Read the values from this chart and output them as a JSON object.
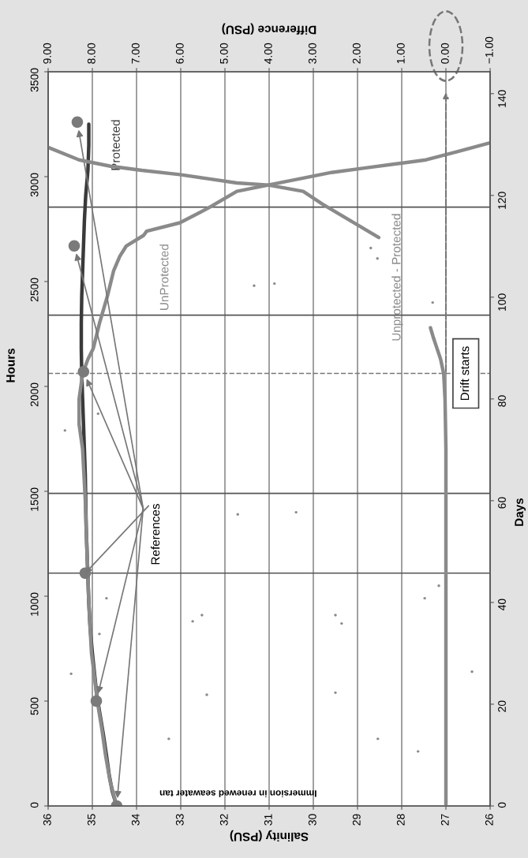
{
  "chart_data": {
    "type": "line",
    "xlabel": "Salinity (PSU)",
    "x2label": "Difference (PSU)",
    "ylabel": "Hours",
    "y2label": "Days",
    "xlim": [
      36,
      26
    ],
    "xticks": [
      36,
      35,
      34,
      33,
      32,
      31,
      30,
      29,
      28,
      27,
      26
    ],
    "x2lim": [
      9,
      -1
    ],
    "x2ticks": [
      {
        "value": 9,
        "label": "9.00"
      },
      {
        "value": 8,
        "label": "8.00"
      },
      {
        "value": 7,
        "label": "7.00"
      },
      {
        "value": 6,
        "label": "6.00"
      },
      {
        "value": 5,
        "label": "5.00"
      },
      {
        "value": 4,
        "label": "4.00"
      },
      {
        "value": 3,
        "label": "3.00"
      },
      {
        "value": 2,
        "label": "2.00"
      },
      {
        "value": 1,
        "label": "1.00"
      },
      {
        "value": 0,
        "label": "0.00"
      },
      {
        "value": -1,
        "label": "−1.00"
      }
    ],
    "ylim": [
      0,
      3500
    ],
    "yticks": [
      0,
      500,
      1000,
      1500,
      2000,
      2500,
      3000,
      3500
    ],
    "y2lim": [
      0,
      144.3
    ],
    "y2ticks": [
      0,
      20,
      40,
      60,
      80,
      100,
      120,
      140
    ],
    "grid": "x",
    "legend": false,
    "series": [
      {
        "name": "Protected",
        "type": "line",
        "color": "#3a3a3a",
        "x": [
          34.45,
          34.55,
          34.62,
          34.68,
          34.75,
          34.83,
          34.9,
          34.95,
          35.0,
          35.05,
          35.08,
          35.1,
          35.12,
          35.14,
          35.15,
          35.16,
          35.18,
          35.2,
          35.22,
          35.24,
          35.25,
          35.25,
          35.24,
          35.22,
          35.2,
          35.18,
          35.15,
          35.1,
          35.08,
          35.08
        ],
        "values": [
          0,
          70,
          150,
          240,
          340,
          440,
          530,
          630,
          730,
          850,
          970,
          1090,
          1210,
          1330,
          1460,
          1580,
          1700,
          1820,
          1940,
          2060,
          2180,
          2300,
          2430,
          2550,
          2670,
          2790,
          2910,
          3030,
          3150,
          3250
        ]
      },
      {
        "name": "UnProtected",
        "type": "line",
        "color": "#8a8a8a",
        "x": [
          34.45,
          34.6,
          34.7,
          34.78,
          34.88,
          34.95,
          35.02,
          35.08,
          35.12,
          35.16,
          35.22,
          35.3,
          35.3,
          35.22,
          35.1,
          34.98,
          34.84,
          34.66,
          34.52,
          34.38,
          34.23,
          33.84,
          33.77,
          33.02,
          32.38,
          31.73,
          31.02,
          30.3,
          29.59,
          28.88,
          28.16,
          27.45,
          26.73,
          26.02
        ],
        "values": [
          0,
          120,
          240,
          360,
          490,
          610,
          730,
          970,
          1210,
          1460,
          1700,
          1820,
          1940,
          2060,
          2130,
          2180,
          2300,
          2430,
          2550,
          2620,
          2670,
          2720,
          2740,
          2780,
          2850,
          2930,
          2960,
          2990,
          3020,
          3040,
          3060,
          3080,
          3120,
          3160
        ]
      },
      {
        "name": "Unprotected - Protected",
        "type": "line",
        "axis": "x2",
        "color": "#8a8a8a",
        "x": [
          0,
          0,
          0,
          0,
          0,
          0,
          0,
          0,
          0.02,
          0.05,
          0.12,
          0.2,
          0.28,
          0.35,
          null,
          1.52,
          2.16,
          2.8,
          3.23,
          4.02,
          4.73,
          5.38,
          6.02,
          6.88,
          7.59,
          8.3,
          9.0
        ],
        "values": [
          0,
          240,
          490,
          730,
          970,
          1210,
          1460,
          1700,
          1940,
          2060,
          2130,
          2180,
          2230,
          2280,
          null,
          2710,
          2790,
          2870,
          2930,
          2960,
          2970,
          2990,
          3010,
          3030,
          3050,
          3080,
          3140
        ]
      },
      {
        "type": "scatter",
        "color": "#7a7a7a",
        "marker": "circle",
        "x": [
          34.45,
          34.91,
          35.16,
          35.2,
          35.41,
          35.34
        ],
        "values": [
          0,
          500,
          1110,
          2070,
          2670,
          3260
        ]
      },
      {
        "type": "scatter",
        "color": "#8a8a8a",
        "marker": "circle",
        "x": [
          35.48,
          33.27,
          32.73,
          32.52,
          32.41,
          31.71,
          30.39,
          29.5,
          29.36,
          29.5,
          28.54,
          27.63,
          26.41,
          27.48,
          27.16,
          34.68,
          34.84,
          31.34,
          30.88,
          28.7,
          28.55,
          27.3,
          34.87,
          35.62
        ],
        "values": [
          630,
          320,
          880,
          910,
          530,
          1390,
          1400,
          910,
          870,
          540,
          320,
          260,
          640,
          990,
          1050,
          990,
          820,
          2480,
          2490,
          2660,
          2610,
          2400,
          1870,
          1790
        ]
      }
    ],
    "ref_lines": [
      {
        "axis": "y",
        "value": 1110,
        "label": null,
        "color": "#555555"
      },
      {
        "axis": "y",
        "value": 1490,
        "label": null,
        "color": "#555555"
      },
      {
        "axis": "y",
        "value": 2340,
        "label": null,
        "color": "#555555"
      },
      {
        "axis": "y",
        "value": 2855,
        "label": null,
        "color": "#555555"
      },
      {
        "axis": "y",
        "value": 2062,
        "label": "Drift starts",
        "color": "#777777",
        "line_style": "dashed"
      }
    ],
    "annotations": [
      {
        "text": "References",
        "x": 35.16,
        "y": 1110
      },
      "Immersion in renewed seawater tan"
    ]
  }
}
